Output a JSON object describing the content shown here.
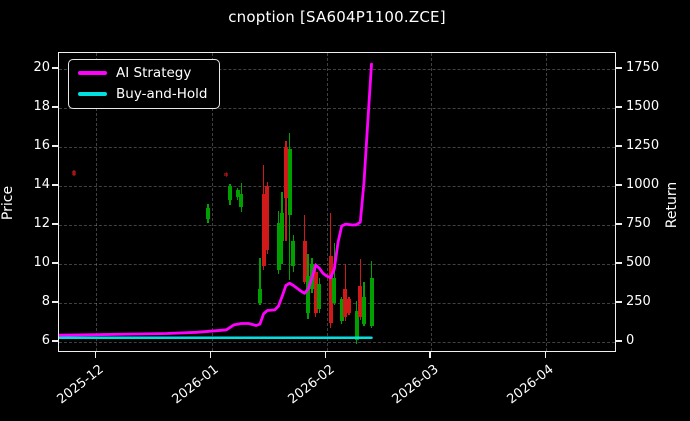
{
  "window": {
    "title": "cnoption [SA604P1100.ZCE]"
  },
  "legend": {
    "items": [
      {
        "label": "AI Strategy",
        "color": "#ff00ff"
      },
      {
        "label": "Buy-and-Hold",
        "color": "#00e0e0"
      }
    ]
  },
  "axes": {
    "left": {
      "label": "Price",
      "ticks": [
        "6",
        "8",
        "10",
        "12",
        "14",
        "16",
        "18",
        "20"
      ]
    },
    "right": {
      "label": "Return",
      "ticks": [
        "0",
        "250",
        "500",
        "750",
        "1000",
        "1250",
        "1500",
        "1750"
      ]
    },
    "bottom": {
      "ticks": [
        "2025-12",
        "2026-01",
        "2026-02",
        "2026-03",
        "2026-04"
      ]
    }
  },
  "chart_data": {
    "type": "candlestick+line",
    "title": "cnoption [SA604P1100.ZCE]",
    "background": "#000000",
    "grid": true,
    "legend_position": "upper-left",
    "x_domain": [
      "2025-11-21",
      "2026-04-20"
    ],
    "x_ticks": [
      {
        "date": "2025-12-01",
        "label": "2025-12"
      },
      {
        "date": "2026-01-01",
        "label": "2026-01"
      },
      {
        "date": "2026-02-01",
        "label": "2026-02"
      },
      {
        "date": "2026-03-01",
        "label": "2026-03"
      },
      {
        "date": "2026-04-01",
        "label": "2026-04"
      }
    ],
    "y_left": {
      "label": "Price",
      "ticks": [
        6,
        8,
        10,
        12,
        14,
        16,
        18,
        20
      ],
      "range": [
        5.44,
        20.82
      ]
    },
    "y_right": {
      "label": "Return",
      "ticks": [
        0,
        250,
        500,
        750,
        1000,
        1250,
        1500,
        1750
      ],
      "aligned_with_price_ticks": true
    },
    "colors": {
      "up": "#00a000",
      "down": "#d01a1a",
      "strategy": "#ff00ff",
      "buy_and_hold": "#00e0e0"
    },
    "candles": [
      {
        "date": "2025-11-25",
        "o": 14.75,
        "h": 14.8,
        "l": 14.5,
        "c": 14.55,
        "faint": true
      },
      {
        "date": "2025-12-31",
        "o": 12.3,
        "h": 13.1,
        "l": 12.1,
        "c": 12.9
      },
      {
        "date": "2026-01-05",
        "o": 14.65,
        "h": 14.7,
        "l": 14.45,
        "c": 14.5,
        "faint": true
      },
      {
        "date": "2026-01-06",
        "o": 13.3,
        "h": 14.1,
        "l": 13.05,
        "c": 14.0
      },
      {
        "date": "2026-01-08",
        "o": 13.45,
        "h": 13.9,
        "l": 13.3,
        "c": 13.8
      },
      {
        "date": "2026-01-09",
        "o": 12.9,
        "h": 14.15,
        "l": 12.65,
        "c": 13.6
      },
      {
        "date": "2026-01-14",
        "o": 8.0,
        "h": 10.3,
        "l": 7.9,
        "c": 8.7
      },
      {
        "date": "2026-01-15",
        "o": 13.6,
        "h": 15.1,
        "l": 9.7,
        "c": 9.9
      },
      {
        "date": "2026-01-16",
        "o": 14.0,
        "h": 14.2,
        "l": 10.5,
        "c": 10.7
      },
      {
        "date": "2026-01-19",
        "o": 9.7,
        "h": 12.7,
        "l": 9.5,
        "c": 12.1
      },
      {
        "date": "2026-01-20",
        "o": 11.2,
        "h": 13.7,
        "l": 10.0,
        "c": 12.6
      },
      {
        "date": "2026-01-21",
        "o": 16.0,
        "h": 16.3,
        "l": 11.2,
        "c": 13.4
      },
      {
        "date": "2026-01-22",
        "o": 12.5,
        "h": 16.7,
        "l": 9.2,
        "c": 15.9
      },
      {
        "date": "2026-01-23",
        "o": 9.9,
        "h": 11.5,
        "l": 9.6,
        "c": 11.2
      },
      {
        "date": "2026-01-26",
        "o": 11.2,
        "h": 12.5,
        "l": 9.0,
        "c": 9.1
      },
      {
        "date": "2026-01-27",
        "o": 7.5,
        "h": 10.5,
        "l": 7.2,
        "c": 9.4
      },
      {
        "date": "2026-01-28",
        "o": 8.7,
        "h": 10.3,
        "l": 8.5,
        "c": 10.0
      },
      {
        "date": "2026-01-29",
        "o": 9.6,
        "h": 10.05,
        "l": 7.3,
        "c": 7.5
      },
      {
        "date": "2026-01-30",
        "o": 7.7,
        "h": 9.3,
        "l": 7.5,
        "c": 9.0
      },
      {
        "date": "2026-02-02",
        "o": 10.4,
        "h": 12.6,
        "l": 6.7,
        "c": 7.0
      },
      {
        "date": "2026-02-03",
        "o": 8.0,
        "h": 11.1,
        "l": 7.9,
        "c": 9.3
      },
      {
        "date": "2026-02-05",
        "o": 7.1,
        "h": 8.3,
        "l": 6.9,
        "c": 8.2
      },
      {
        "date": "2026-02-06",
        "o": 8.7,
        "h": 10.0,
        "l": 7.1,
        "c": 7.3
      },
      {
        "date": "2026-02-07",
        "o": 8.2,
        "h": 8.3,
        "l": 7.4,
        "c": 7.5
      },
      {
        "date": "2026-02-09",
        "o": 6.1,
        "h": 8.1,
        "l": 5.9,
        "c": 7.6
      },
      {
        "date": "2026-02-10",
        "o": 8.9,
        "h": 10.25,
        "l": 7.15,
        "c": 7.3
      },
      {
        "date": "2026-02-11",
        "o": 6.9,
        "h": 9.1,
        "l": 6.8,
        "c": 8.3
      },
      {
        "date": "2026-02-13",
        "o": 6.8,
        "h": 10.15,
        "l": 6.7,
        "c": 9.3
      }
    ],
    "series": [
      {
        "name": "AI Strategy",
        "color": "#ff00ff",
        "width": 2.8,
        "values_axis": "price",
        "points": [
          [
            "2025-11-21",
            6.35
          ],
          [
            "2025-12-01",
            6.38
          ],
          [
            "2025-12-10",
            6.41
          ],
          [
            "2025-12-20",
            6.44
          ],
          [
            "2025-12-28",
            6.5
          ],
          [
            "2026-01-02",
            6.58
          ],
          [
            "2026-01-05",
            6.63
          ],
          [
            "2026-01-07",
            6.88
          ],
          [
            "2026-01-09",
            6.95
          ],
          [
            "2026-01-11",
            6.95
          ],
          [
            "2026-01-13",
            6.85
          ],
          [
            "2026-01-14",
            6.92
          ],
          [
            "2026-01-15",
            7.45
          ],
          [
            "2026-01-16",
            7.62
          ],
          [
            "2026-01-18",
            7.65
          ],
          [
            "2026-01-19",
            7.85
          ],
          [
            "2026-01-20",
            8.35
          ],
          [
            "2026-01-21",
            8.9
          ],
          [
            "2026-01-22",
            9.02
          ],
          [
            "2026-01-23",
            8.9
          ],
          [
            "2026-01-25",
            8.62
          ],
          [
            "2026-01-26",
            8.5
          ],
          [
            "2026-01-27",
            8.72
          ],
          [
            "2026-01-28",
            9.3
          ],
          [
            "2026-01-29",
            9.95
          ],
          [
            "2026-01-30",
            9.78
          ],
          [
            "2026-01-31",
            9.52
          ],
          [
            "2026-02-01",
            9.38
          ],
          [
            "2026-02-02",
            9.3
          ],
          [
            "2026-02-03",
            9.75
          ],
          [
            "2026-02-04",
            11.1
          ],
          [
            "2026-02-05",
            11.95
          ],
          [
            "2026-02-06",
            12.05
          ],
          [
            "2026-02-08",
            12.0
          ],
          [
            "2026-02-09",
            12.02
          ],
          [
            "2026-02-10",
            12.15
          ],
          [
            "2026-02-11",
            14.2
          ],
          [
            "2026-02-12",
            17.3
          ],
          [
            "2026-02-13",
            20.25
          ]
        ]
      },
      {
        "name": "Buy-and-Hold",
        "color": "#00e0e0",
        "width": 2.5,
        "values_axis": "price",
        "points": [
          [
            "2025-11-21",
            6.22
          ],
          [
            "2026-02-13",
            6.22
          ]
        ]
      }
    ]
  }
}
